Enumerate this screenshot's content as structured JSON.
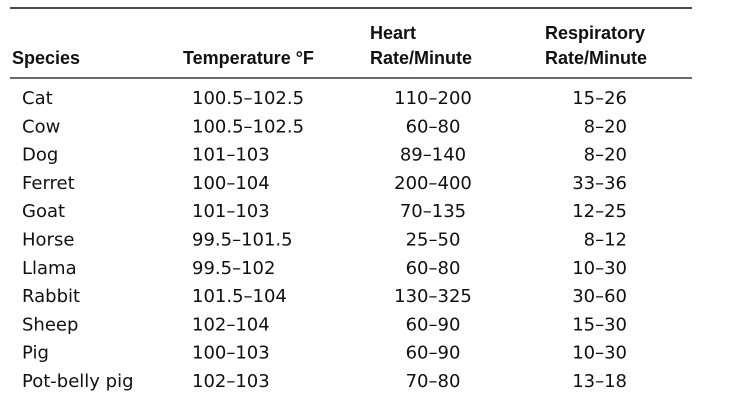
{
  "table": {
    "headers": [
      [
        "Species"
      ],
      [
        "Temperature °F"
      ],
      [
        "Heart",
        "Rate/Minute"
      ],
      [
        "Respiratory",
        "Rate/Minute"
      ]
    ],
    "rows": [
      [
        "Cat",
        "100.5–102.5",
        "110–200",
        "15–26"
      ],
      [
        "Cow",
        "100.5–102.5",
        "60–80",
        "8–20"
      ],
      [
        "Dog",
        "101–103",
        "89–140",
        "8–20"
      ],
      [
        "Ferret",
        "100–104",
        "200–400",
        "33–36"
      ],
      [
        "Goat",
        "101–103",
        "70–135",
        "12–25"
      ],
      [
        "Horse",
        "99.5–101.5",
        "25–50",
        "8–12"
      ],
      [
        "Llama",
        "99.5–102",
        "60–80",
        "10–30"
      ],
      [
        "Rabbit",
        "101.5–104",
        "130–325",
        "30–60"
      ],
      [
        "Sheep",
        "102–104",
        "60–90",
        "15–30"
      ],
      [
        "Pig",
        "100–103",
        "60–90",
        "10–30"
      ],
      [
        "Pot-belly pig",
        "102–103",
        "70–80",
        "13–18"
      ]
    ]
  }
}
